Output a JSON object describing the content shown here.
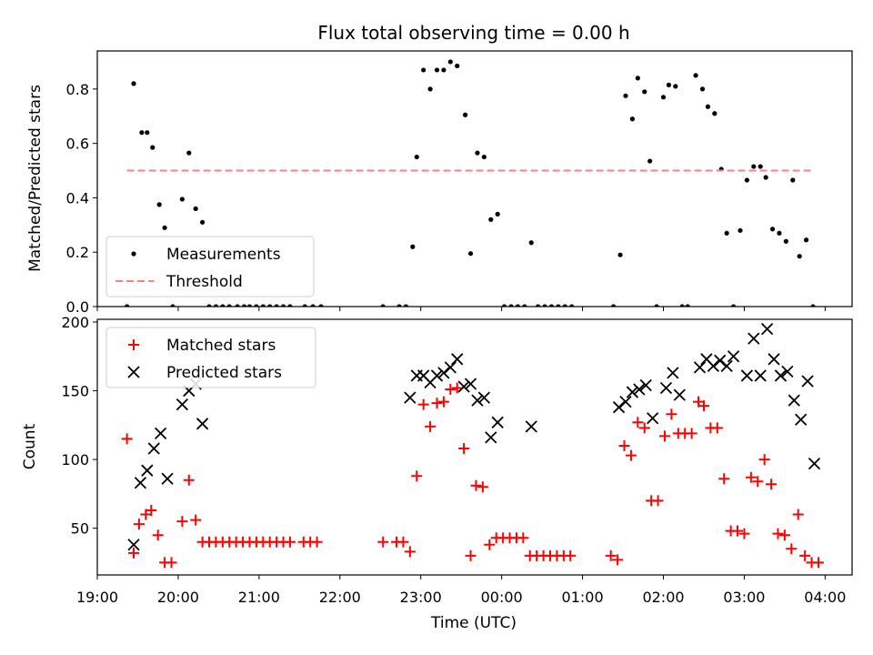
{
  "chart_data": [
    {
      "type": "scatter",
      "title": "Flux total observing time = 0.00 h",
      "ylabel": "Matched/Predicted stars",
      "xlabel": "",
      "xlim": [
        "19:00",
        "04:20"
      ],
      "ylim": [
        0,
        0.94
      ],
      "yticks": [
        "0.0",
        "0.2",
        "0.4",
        "0.6",
        "0.8"
      ],
      "legend_position": "bottom-left",
      "series": [
        {
          "name": "Measurements",
          "marker": "dot",
          "color": "#000000",
          "points": [
            [
              "19:22",
              0.0
            ],
            [
              "19:27",
              0.82
            ],
            [
              "19:33",
              0.64
            ],
            [
              "19:37",
              0.64
            ],
            [
              "19:41",
              0.585
            ],
            [
              "19:46",
              0.375
            ],
            [
              "19:50",
              0.29
            ],
            [
              "19:56",
              0.0
            ],
            [
              "20:03",
              0.395
            ],
            [
              "20:08",
              0.565
            ],
            [
              "20:13",
              0.36
            ],
            [
              "20:18",
              0.31
            ],
            [
              "20:23",
              0.0
            ],
            [
              "20:28",
              0.0
            ],
            [
              "20:33",
              0.0
            ],
            [
              "20:38",
              0.0
            ],
            [
              "20:44",
              0.0
            ],
            [
              "20:49",
              0.0
            ],
            [
              "20:53",
              0.0
            ],
            [
              "20:58",
              0.0
            ],
            [
              "21:03",
              0.0
            ],
            [
              "21:08",
              0.0
            ],
            [
              "21:13",
              0.0
            ],
            [
              "21:18",
              0.0
            ],
            [
              "21:23",
              0.0
            ],
            [
              "21:34",
              0.0
            ],
            [
              "21:40",
              0.0
            ],
            [
              "21:46",
              0.0
            ],
            [
              "22:32",
              0.0
            ],
            [
              "22:44",
              0.0
            ],
            [
              "22:49",
              0.0
            ],
            [
              "22:54",
              0.22
            ],
            [
              "22:57",
              0.55
            ],
            [
              "23:02",
              0.87
            ],
            [
              "23:07",
              0.8
            ],
            [
              "23:12",
              0.87
            ],
            [
              "23:17",
              0.87
            ],
            [
              "23:22",
              0.9
            ],
            [
              "23:27",
              0.885
            ],
            [
              "23:33",
              0.705
            ],
            [
              "23:37",
              0.195
            ],
            [
              "23:42",
              0.565
            ],
            [
              "23:47",
              0.55
            ],
            [
              "23:52",
              0.32
            ],
            [
              "23:57",
              0.34
            ],
            [
              "00:02",
              0.0
            ],
            [
              "00:07",
              0.0
            ],
            [
              "00:12",
              0.0
            ],
            [
              "00:17",
              0.0
            ],
            [
              "00:22",
              0.235
            ],
            [
              "00:27",
              0.0
            ],
            [
              "00:32",
              0.0
            ],
            [
              "00:37",
              0.0
            ],
            [
              "00:42",
              0.0
            ],
            [
              "00:47",
              0.0
            ],
            [
              "00:52",
              0.0
            ],
            [
              "01:23",
              0.0
            ],
            [
              "01:28",
              0.19
            ],
            [
              "01:32",
              0.775
            ],
            [
              "01:37",
              0.69
            ],
            [
              "01:41",
              0.84
            ],
            [
              "01:46",
              0.79
            ],
            [
              "01:50",
              0.535
            ],
            [
              "01:55",
              0.0
            ],
            [
              "02:00",
              0.77
            ],
            [
              "02:04",
              0.815
            ],
            [
              "02:09",
              0.81
            ],
            [
              "02:14",
              0.0
            ],
            [
              "02:18",
              0.0
            ],
            [
              "02:24",
              0.85
            ],
            [
              "02:29",
              0.8
            ],
            [
              "02:33",
              0.735
            ],
            [
              "02:38",
              0.71
            ],
            [
              "02:43",
              0.505
            ],
            [
              "02:47",
              0.27
            ],
            [
              "02:52",
              0.0
            ],
            [
              "02:57",
              0.28
            ],
            [
              "03:02",
              0.465
            ],
            [
              "03:07",
              0.515
            ],
            [
              "03:12",
              0.515
            ],
            [
              "03:16",
              0.475
            ],
            [
              "03:21",
              0.285
            ],
            [
              "03:26",
              0.27
            ],
            [
              "03:31",
              0.24
            ],
            [
              "03:36",
              0.465
            ],
            [
              "03:41",
              0.185
            ],
            [
              "03:46",
              0.245
            ],
            [
              "03:51",
              0.0
            ]
          ]
        },
        {
          "name": "Threshold",
          "type": "line",
          "style": "dashed",
          "color": "#ff7f7f",
          "points": [
            [
              "19:22",
              0.5
            ],
            [
              "03:51",
              0.5
            ]
          ]
        }
      ]
    },
    {
      "type": "scatter",
      "title": "",
      "ylabel": "Count",
      "xlabel": "Time (UTC)",
      "xlim": [
        "19:00",
        "04:20"
      ],
      "ylim": [
        16,
        202
      ],
      "yticks": [
        "50",
        "100",
        "150",
        "200"
      ],
      "xticks": [
        "19:00",
        "20:00",
        "21:00",
        "22:00",
        "23:00",
        "00:00",
        "01:00",
        "02:00",
        "03:00",
        "04:00"
      ],
      "legend_position": "top-left",
      "series": [
        {
          "name": "Matched stars",
          "marker": "plus",
          "color": "#ff0000",
          "points": [
            [
              "19:22",
              115
            ],
            [
              "19:27",
              32
            ],
            [
              "19:31",
              53
            ],
            [
              "19:36",
              60
            ],
            [
              "19:40",
              63
            ],
            [
              "19:45",
              45
            ],
            [
              "19:50",
              25
            ],
            [
              "19:55",
              25
            ],
            [
              "20:03",
              55
            ],
            [
              "20:08",
              85
            ],
            [
              "20:13",
              56
            ],
            [
              "20:18",
              40
            ],
            [
              "20:23",
              40
            ],
            [
              "20:28",
              40
            ],
            [
              "20:33",
              40
            ],
            [
              "20:38",
              40
            ],
            [
              "20:43",
              40
            ],
            [
              "20:48",
              40
            ],
            [
              "20:53",
              40
            ],
            [
              "20:58",
              40
            ],
            [
              "21:03",
              40
            ],
            [
              "21:08",
              40
            ],
            [
              "21:13",
              40
            ],
            [
              "21:18",
              40
            ],
            [
              "21:23",
              40
            ],
            [
              "21:33",
              40
            ],
            [
              "21:38",
              40
            ],
            [
              "21:43",
              40
            ],
            [
              "22:32",
              40
            ],
            [
              "22:42",
              40
            ],
            [
              "22:47",
              40
            ],
            [
              "22:52",
              33
            ],
            [
              "22:57",
              88
            ],
            [
              "23:02",
              140
            ],
            [
              "23:07",
              124
            ],
            [
              "23:12",
              141
            ],
            [
              "23:17",
              142
            ],
            [
              "23:22",
              151
            ],
            [
              "23:27",
              152
            ],
            [
              "23:32",
              108
            ],
            [
              "23:37",
              30
            ],
            [
              "23:41",
              81
            ],
            [
              "23:46",
              80
            ],
            [
              "23:51",
              38
            ],
            [
              "23:56",
              43
            ],
            [
              "00:01",
              43
            ],
            [
              "00:06",
              43
            ],
            [
              "00:11",
              43
            ],
            [
              "00:16",
              43
            ],
            [
              "00:21",
              30
            ],
            [
              "00:26",
              30
            ],
            [
              "00:31",
              30
            ],
            [
              "00:36",
              30
            ],
            [
              "00:41",
              30
            ],
            [
              "00:46",
              30
            ],
            [
              "00:51",
              30
            ],
            [
              "01:21",
              30
            ],
            [
              "01:26",
              27
            ],
            [
              "01:31",
              110
            ],
            [
              "01:36",
              103
            ],
            [
              "01:41",
              127
            ],
            [
              "01:46",
              123
            ],
            [
              "01:51",
              70
            ],
            [
              "01:56",
              70
            ],
            [
              "02:01",
              117
            ],
            [
              "02:06",
              133
            ],
            [
              "02:11",
              119
            ],
            [
              "02:16",
              119
            ],
            [
              "02:21",
              119
            ],
            [
              "02:26",
              142
            ],
            [
              "02:30",
              139
            ],
            [
              "02:35",
              123
            ],
            [
              "02:40",
              123
            ],
            [
              "02:45",
              86
            ],
            [
              "02:50",
              48
            ],
            [
              "02:55",
              48
            ],
            [
              "03:00",
              46
            ],
            [
              "03:05",
              87
            ],
            [
              "03:10",
              84
            ],
            [
              "03:15",
              100
            ],
            [
              "03:20",
              82
            ],
            [
              "03:25",
              46
            ],
            [
              "03:30",
              45
            ],
            [
              "03:35",
              35
            ],
            [
              "03:40",
              60
            ],
            [
              "03:45",
              30
            ],
            [
              "03:50",
              25
            ],
            [
              "03:55",
              25
            ]
          ]
        },
        {
          "name": "Predicted stars",
          "marker": "x",
          "color": "#000000",
          "points": [
            [
              "19:27",
              38
            ],
            [
              "19:32",
              83
            ],
            [
              "19:37",
              92
            ],
            [
              "19:42",
              108
            ],
            [
              "19:47",
              119
            ],
            [
              "19:52",
              86
            ],
            [
              "20:03",
              140
            ],
            [
              "20:08",
              150
            ],
            [
              "20:13",
              155
            ],
            [
              "20:18",
              126
            ],
            [
              "22:52",
              145
            ],
            [
              "22:57",
              161
            ],
            [
              "23:02",
              161
            ],
            [
              "23:07",
              156
            ],
            [
              "23:12",
              161
            ],
            [
              "23:17",
              163
            ],
            [
              "23:22",
              167
            ],
            [
              "23:27",
              173
            ],
            [
              "23:32",
              153
            ],
            [
              "23:37",
              155
            ],
            [
              "23:42",
              143
            ],
            [
              "23:47",
              145
            ],
            [
              "23:52",
              116
            ],
            [
              "23:57",
              127
            ],
            [
              "00:22",
              124
            ],
            [
              "01:27",
              138
            ],
            [
              "01:32",
              142
            ],
            [
              "01:37",
              149
            ],
            [
              "01:42",
              151
            ],
            [
              "01:47",
              154
            ],
            [
              "01:52",
              130
            ],
            [
              "02:02",
              152
            ],
            [
              "02:07",
              163
            ],
            [
              "02:12",
              147
            ],
            [
              "02:27",
              167
            ],
            [
              "02:32",
              173
            ],
            [
              "02:37",
              168
            ],
            [
              "02:42",
              172
            ],
            [
              "02:47",
              168
            ],
            [
              "02:52",
              175
            ],
            [
              "03:02",
              161
            ],
            [
              "03:07",
              188
            ],
            [
              "03:12",
              161
            ],
            [
              "03:17",
              195
            ],
            [
              "03:22",
              173
            ],
            [
              "03:27",
              161
            ],
            [
              "03:32",
              164
            ],
            [
              "03:37",
              143
            ],
            [
              "03:42",
              129
            ],
            [
              "03:47",
              157
            ],
            [
              "03:52",
              97
            ]
          ]
        }
      ]
    }
  ]
}
